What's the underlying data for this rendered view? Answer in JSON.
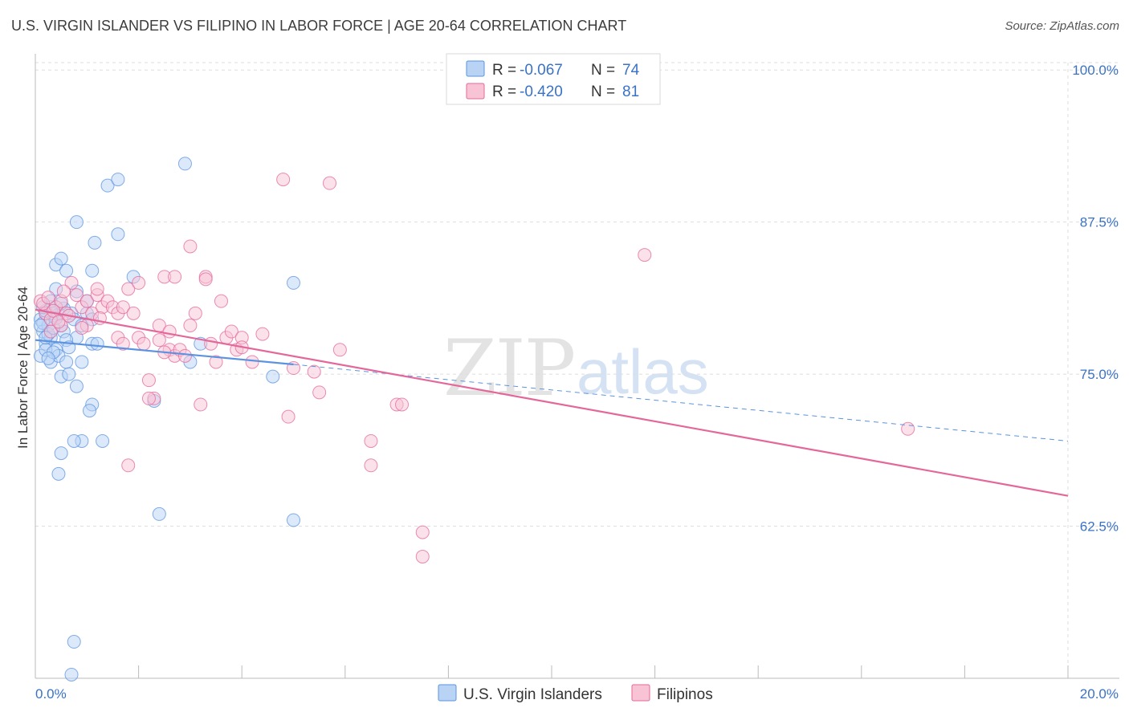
{
  "title": "U.S. VIRGIN ISLANDER VS FILIPINO IN LABOR FORCE | AGE 20-64 CORRELATION CHART",
  "source": "Source: ZipAtlas.com",
  "watermark": {
    "zip": "ZIP",
    "atlas": "atlas"
  },
  "legend": {
    "r_label": "R =",
    "n_label": "N =",
    "rows": [
      {
        "r": "-0.067",
        "n": "74"
      },
      {
        "r": "-0.420",
        "n": "81"
      }
    ]
  },
  "chart_data": {
    "type": "scatter",
    "title": "U.S. VIRGIN ISLANDER VS FILIPINO IN LABOR FORCE | AGE 20-64 CORRELATION CHART",
    "xlabel": "",
    "ylabel": "In Labor Force | Age 20-64",
    "x_unit": "%",
    "xlim": [
      0,
      20
    ],
    "ylim": [
      50,
      101.2
    ],
    "x_tick_labels": [
      {
        "value": 0,
        "label": "0.0%"
      },
      {
        "value": 20,
        "label": "20.0%"
      }
    ],
    "y_tick_labels": [
      {
        "value": 62.5,
        "label": "62.5%"
      },
      {
        "value": 75.0,
        "label": "75.0%"
      },
      {
        "value": 87.5,
        "label": "87.5%"
      },
      {
        "value": 100.0,
        "label": "100.0%"
      }
    ],
    "series": [
      {
        "name": "U.S. Virgin Islanders",
        "color": "#5b93e0",
        "fill": "#b9d3f5",
        "r": -0.067,
        "n": 74,
        "trend": {
          "x0": 0,
          "y0": 77.8,
          "x1": 5,
          "y1": 75.8,
          "dash_x1": 20,
          "dash_y1": 69.5
        },
        "points": [
          [
            0.1,
            79.5
          ],
          [
            0.2,
            80.0
          ],
          [
            0.15,
            78.5
          ],
          [
            0.2,
            77.5
          ],
          [
            0.3,
            76.0
          ],
          [
            0.1,
            76.5
          ],
          [
            0.25,
            79.0
          ],
          [
            0.3,
            78.0
          ],
          [
            0.35,
            80.0
          ],
          [
            0.4,
            82.0
          ],
          [
            0.4,
            84.0
          ],
          [
            0.5,
            84.5
          ],
          [
            0.6,
            83.5
          ],
          [
            0.4,
            77.0
          ],
          [
            0.45,
            76.5
          ],
          [
            0.5,
            79.0
          ],
          [
            0.55,
            78.5
          ],
          [
            0.6,
            76.0
          ],
          [
            0.5,
            74.8
          ],
          [
            0.65,
            75.0
          ],
          [
            0.7,
            80.0
          ],
          [
            0.75,
            79.5
          ],
          [
            0.8,
            78.0
          ],
          [
            0.8,
            74.0
          ],
          [
            0.9,
            79.0
          ],
          [
            0.9,
            76.0
          ],
          [
            1.0,
            80.0
          ],
          [
            1.0,
            81.0
          ],
          [
            1.1,
            79.5
          ],
          [
            1.1,
            77.5
          ],
          [
            1.2,
            77.5
          ],
          [
            1.1,
            72.5
          ],
          [
            1.05,
            72.0
          ],
          [
            1.1,
            83.5
          ],
          [
            1.15,
            85.8
          ],
          [
            0.8,
            87.5
          ],
          [
            1.4,
            90.5
          ],
          [
            1.6,
            91.0
          ],
          [
            1.6,
            86.5
          ],
          [
            1.9,
            83.0
          ],
          [
            2.3,
            72.8
          ],
          [
            2.4,
            63.5
          ],
          [
            2.9,
            92.3
          ],
          [
            3.0,
            76.0
          ],
          [
            3.2,
            77.5
          ],
          [
            5.0,
            82.5
          ],
          [
            4.6,
            74.8
          ],
          [
            5.0,
            63.0
          ],
          [
            1.3,
            69.5
          ],
          [
            0.9,
            69.5
          ],
          [
            0.75,
            69.5
          ],
          [
            0.5,
            68.5
          ],
          [
            0.45,
            66.8
          ],
          [
            0.75,
            53.0
          ],
          [
            0.7,
            50.3
          ],
          [
            0.2,
            80.2
          ],
          [
            0.15,
            79.2
          ],
          [
            0.25,
            78.3
          ],
          [
            0.3,
            80.5
          ],
          [
            0.2,
            77.0
          ],
          [
            0.35,
            78.8
          ],
          [
            0.45,
            79.9
          ],
          [
            0.55,
            80.4
          ],
          [
            0.6,
            77.8
          ],
          [
            0.3,
            81.0
          ],
          [
            0.4,
            79.6
          ],
          [
            0.2,
            78.0
          ],
          [
            0.1,
            79.0
          ],
          [
            0.5,
            80.8
          ],
          [
            0.65,
            77.2
          ],
          [
            0.35,
            76.8
          ],
          [
            0.15,
            80.5
          ],
          [
            0.25,
            76.3
          ],
          [
            0.8,
            81.8
          ]
        ]
      },
      {
        "name": "Filipinos",
        "color": "#e4679a",
        "fill": "#f7c3d5",
        "r": -0.42,
        "n": 81,
        "trend": {
          "x0": 0,
          "y0": 80.3,
          "x1": 20,
          "y1": 65.0
        },
        "points": [
          [
            0.1,
            81.0
          ],
          [
            0.2,
            80.0
          ],
          [
            0.3,
            79.5
          ],
          [
            0.4,
            80.5
          ],
          [
            0.5,
            81.0
          ],
          [
            0.6,
            80.0
          ],
          [
            0.3,
            78.5
          ],
          [
            0.5,
            79.0
          ],
          [
            0.7,
            82.5
          ],
          [
            0.8,
            81.5
          ],
          [
            0.9,
            80.5
          ],
          [
            1.0,
            79.0
          ],
          [
            1.0,
            81.0
          ],
          [
            1.1,
            80.0
          ],
          [
            1.2,
            81.5
          ],
          [
            1.2,
            82.0
          ],
          [
            1.3,
            80.5
          ],
          [
            1.4,
            81.0
          ],
          [
            1.5,
            80.5
          ],
          [
            1.6,
            80.0
          ],
          [
            1.6,
            78.0
          ],
          [
            1.7,
            77.5
          ],
          [
            1.7,
            80.5
          ],
          [
            1.8,
            82.0
          ],
          [
            1.9,
            80.0
          ],
          [
            2.0,
            82.5
          ],
          [
            2.0,
            78.0
          ],
          [
            2.1,
            77.5
          ],
          [
            2.2,
            74.5
          ],
          [
            2.3,
            73.0
          ],
          [
            2.4,
            79.0
          ],
          [
            2.4,
            77.8
          ],
          [
            2.5,
            83.0
          ],
          [
            2.6,
            77.0
          ],
          [
            2.6,
            78.5
          ],
          [
            2.7,
            76.5
          ],
          [
            2.7,
            83.0
          ],
          [
            2.8,
            77.0
          ],
          [
            2.9,
            76.5
          ],
          [
            3.0,
            85.5
          ],
          [
            3.0,
            79.0
          ],
          [
            3.1,
            80.0
          ],
          [
            3.2,
            72.5
          ],
          [
            3.3,
            83.0
          ],
          [
            3.3,
            82.8
          ],
          [
            3.4,
            77.5
          ],
          [
            3.5,
            76.0
          ],
          [
            3.6,
            81.0
          ],
          [
            3.7,
            78.0
          ],
          [
            3.8,
            78.5
          ],
          [
            3.9,
            77.0
          ],
          [
            4.0,
            78.0
          ],
          [
            4.0,
            77.2
          ],
          [
            4.2,
            76.0
          ],
          [
            4.4,
            78.3
          ],
          [
            4.8,
            91.0
          ],
          [
            4.9,
            71.5
          ],
          [
            5.0,
            75.5
          ],
          [
            5.4,
            75.2
          ],
          [
            5.5,
            73.5
          ],
          [
            5.7,
            90.7
          ],
          [
            5.9,
            77.0
          ],
          [
            6.5,
            69.5
          ],
          [
            6.5,
            67.5
          ],
          [
            7.0,
            72.5
          ],
          [
            7.1,
            72.5
          ],
          [
            7.5,
            62.0
          ],
          [
            7.5,
            60.0
          ],
          [
            11.8,
            84.8
          ],
          [
            16.9,
            70.5
          ],
          [
            1.8,
            67.5
          ],
          [
            2.2,
            73.0
          ],
          [
            2.5,
            76.8
          ],
          [
            0.15,
            80.8
          ],
          [
            0.25,
            81.3
          ],
          [
            0.35,
            80.2
          ],
          [
            0.45,
            79.3
          ],
          [
            0.55,
            81.8
          ],
          [
            0.65,
            79.8
          ],
          [
            0.9,
            78.8
          ],
          [
            1.25,
            79.6
          ]
        ]
      }
    ]
  }
}
